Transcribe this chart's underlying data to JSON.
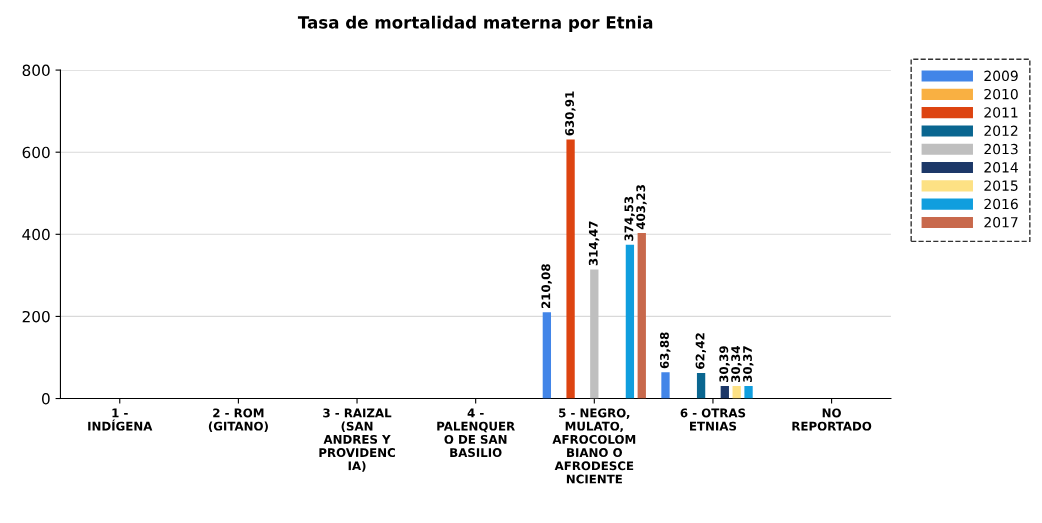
{
  "chart_data": {
    "type": "bar",
    "title": "Tasa de mortalidad materna por Etnia",
    "categories": [
      "1 -\nINDÍGENA",
      "2 - ROM\n(GITANO)",
      "3 - RAIZAL\n(SAN\nANDRES Y\nPROVIDENC\nIA)",
      "4 -\nPALENQUER\nO DE SAN\nBASILIO",
      "5 - NEGRO,\nMULATO,\nAFROCOLOM\nBIANO O\nAFRODESCE\nNCIENTE",
      "6 - OTRAS\nETNIAS",
      "NO\nREPORTADO"
    ],
    "series": [
      {
        "name": "2009",
        "color": "#4285e8",
        "values": [
          null,
          null,
          null,
          null,
          210.08,
          63.88,
          null
        ],
        "value_labels": [
          null,
          null,
          null,
          null,
          "210,08",
          "63,88",
          null
        ]
      },
      {
        "name": "2010",
        "color": "#f9b042",
        "values": [
          null,
          null,
          null,
          null,
          null,
          null,
          null
        ],
        "value_labels": [
          null,
          null,
          null,
          null,
          null,
          null,
          null
        ]
      },
      {
        "name": "2011",
        "color": "#dd4411",
        "values": [
          null,
          null,
          null,
          null,
          630.91,
          null,
          null
        ],
        "value_labels": [
          null,
          null,
          null,
          null,
          "630,91",
          null,
          null
        ]
      },
      {
        "name": "2012",
        "color": "#0a6690",
        "values": [
          null,
          null,
          null,
          null,
          null,
          62.42,
          null
        ],
        "value_labels": [
          null,
          null,
          null,
          null,
          null,
          "62,42",
          null
        ]
      },
      {
        "name": "2013",
        "color": "#bfbfbf",
        "values": [
          null,
          null,
          null,
          null,
          314.47,
          null,
          null
        ],
        "value_labels": [
          null,
          null,
          null,
          null,
          "314,47",
          null,
          null
        ]
      },
      {
        "name": "2014",
        "color": "#1c3868",
        "values": [
          null,
          null,
          null,
          null,
          null,
          30.39,
          null
        ],
        "value_labels": [
          null,
          null,
          null,
          null,
          null,
          "30,39",
          null
        ]
      },
      {
        "name": "2015",
        "color": "#fde184",
        "values": [
          null,
          null,
          null,
          null,
          null,
          30.34,
          null
        ],
        "value_labels": [
          null,
          null,
          null,
          null,
          null,
          "30,34",
          null
        ]
      },
      {
        "name": "2016",
        "color": "#109ede",
        "values": [
          null,
          null,
          null,
          null,
          374.53,
          30.37,
          null
        ],
        "value_labels": [
          null,
          null,
          null,
          null,
          "374,53",
          "30,37",
          null
        ]
      },
      {
        "name": "2017",
        "color": "#c8694c",
        "values": [
          null,
          null,
          null,
          null,
          403.23,
          null,
          null
        ],
        "value_labels": [
          null,
          null,
          null,
          null,
          "403,23",
          null,
          null
        ]
      }
    ],
    "ylim": [
      0,
      800
    ],
    "yticks": [
      0,
      200,
      400,
      600,
      800
    ],
    "grid": "y",
    "legend": "right"
  }
}
